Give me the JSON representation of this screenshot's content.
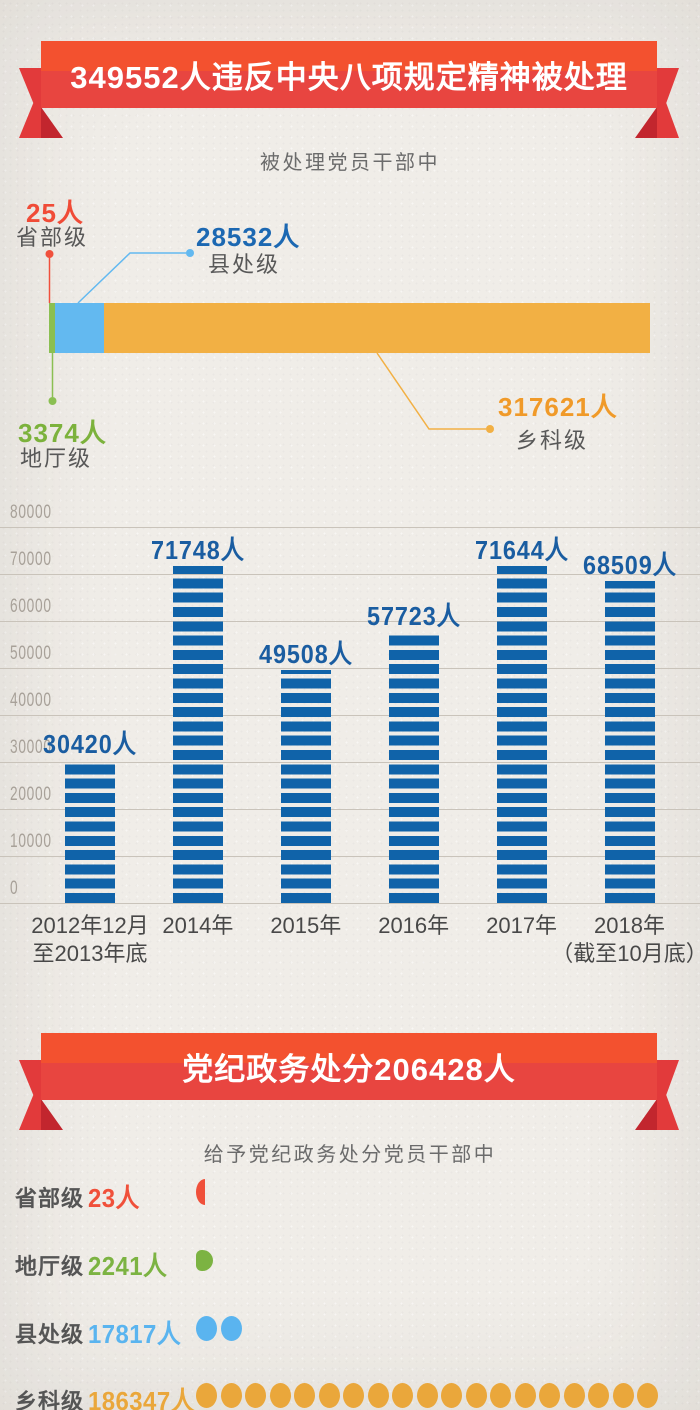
{
  "page": {
    "background": "#f0ede8"
  },
  "banner1": {
    "title": "349552人违反中央八项规定精神被处理",
    "band_color_top": "#f3512f",
    "band_color_bottom": "#e84540"
  },
  "section1": {
    "subtitle": "被处理党员干部中"
  },
  "banner2": {
    "title": "党纪政务处分206428人"
  },
  "section3": {
    "subtitle": "给予党纪政务处分党员干部中"
  },
  "chart_data": [
    {
      "type": "bar",
      "variant": "horizontal-stacked",
      "title": "被处理党员干部中",
      "total": 349552,
      "unit": "人",
      "segments": [
        {
          "name": "省部级",
          "value": 25,
          "count_label": "25人",
          "color": "#f0503c",
          "text_color": "#f04b37"
        },
        {
          "name": "地厅级",
          "value": 3374,
          "count_label": "3374人",
          "color": "#8bbf52",
          "text_color": "#7cb23c"
        },
        {
          "name": "县处级",
          "value": 28532,
          "count_label": "28532人",
          "color": "#63b9f0",
          "text_color": "#1c68b2"
        },
        {
          "name": "乡科级",
          "value": 317621,
          "count_label": "317621人",
          "color": "#f2b044",
          "text_color": "#f09a29"
        }
      ]
    },
    {
      "type": "bar",
      "variant": "vertical-striped",
      "categories": [
        "2012年12月\n至2013年底",
        "2014年",
        "2015年",
        "2016年",
        "2017年",
        "2018年\n（截至10月底）"
      ],
      "values": [
        30420,
        71748,
        49508,
        57723,
        71644,
        68509
      ],
      "value_labels": [
        "30420人",
        "71748人",
        "49508人",
        "57723人",
        "71644人",
        "68509人"
      ],
      "ylim": [
        0,
        80000
      ],
      "ytick_step": 10000,
      "yticks": [
        0,
        10000,
        20000,
        30000,
        40000,
        50000,
        60000,
        70000,
        80000
      ],
      "bar_color": "#1063a9",
      "value_label_color": "#1a5da1",
      "grid": true,
      "legend": "none"
    },
    {
      "type": "bar",
      "variant": "dot-rows",
      "title": "给予党纪政务处分党员干部中",
      "unit_per_dot": 10000,
      "rows": [
        {
          "name": "省部级",
          "value": 23,
          "count_label": "23人",
          "color": "#f0503a",
          "dot_count": 1,
          "dot_style": "sliver"
        },
        {
          "name": "地厅级",
          "value": 2241,
          "count_label": "2241人",
          "color": "#7cb342",
          "dot_count": 1,
          "dot_style": "clipped"
        },
        {
          "name": "县处级",
          "value": 17817,
          "count_label": "17817人",
          "color": "#5ab4ef",
          "dot_count": 2,
          "dot_style": "full"
        },
        {
          "name": "乡科级",
          "value": 186347,
          "count_label": "186347人",
          "color": "#eaa73b",
          "dot_count": 19,
          "dot_style": "full"
        }
      ]
    }
  ]
}
